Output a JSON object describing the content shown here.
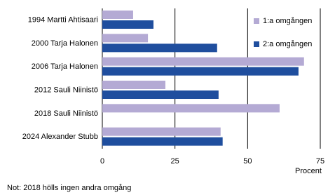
{
  "chart_data": {
    "type": "hbar",
    "categories": [
      "1994 Martti Ahtisaari",
      "2000 Tarja Halonen",
      "2006 Tarja Halonen",
      "2012 Sauli Niinistö",
      "2018 Sauli Niinistö",
      "2024 Alexander Stubb"
    ],
    "series": [
      {
        "name": "1:a omgången",
        "color": "#b4aad4",
        "values": [
          10.6,
          15.7,
          69.4,
          21.7,
          61.0,
          40.7
        ]
      },
      {
        "name": "2:a omgången",
        "color": "#1f4e9e",
        "values": [
          17.6,
          39.5,
          67.5,
          40.0,
          null,
          41.4
        ]
      }
    ],
    "xlim": [
      0,
      75
    ],
    "xticks": [
      0,
      25,
      50,
      75
    ],
    "xlabel": "Procent",
    "grid": true,
    "legend": "upper right",
    "note": "Not: 2018 hölls ingen andra omgång"
  }
}
